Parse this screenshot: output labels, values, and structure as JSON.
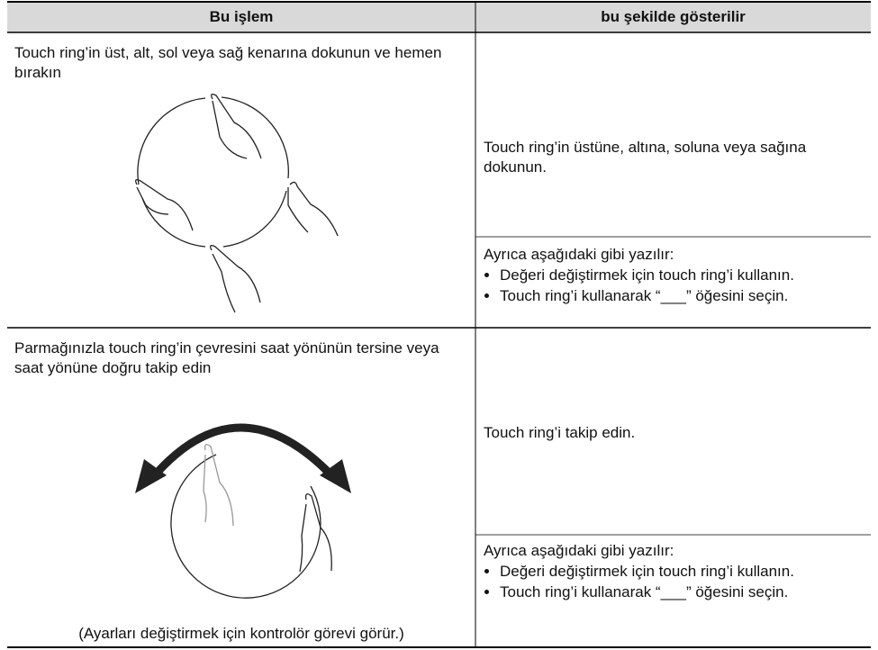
{
  "table": {
    "headers": [
      "Bu işlem",
      "bu şekilde gösterilir"
    ],
    "rows": [
      {
        "action": "Touch ring’in üst, alt, sol veya sağ kenarına dokunun ve hemen bırakın",
        "description": "Touch ring’in üstüne, altına, soluna veya sağına dokunun.",
        "note": {
          "intro": "Ayrıca aşağıdaki gibi yazılır:",
          "items": [
            "Değeri değiştirmek için touch ring’i kullanın.",
            "Touch ring’i kullanarak “___” öğesini seçin."
          ]
        }
      },
      {
        "action": "Parmağınızla touch ring’in çevresini saat yönünün tersine veya saat yönüne doğru takip edin",
        "description": "Touch ring’i takip edin.",
        "caption": "(Ayarları değiştirmek için kontrolör görevi görür.)",
        "note": {
          "intro": "Ayrıca aşağıdaki gibi yazılır:",
          "items": [
            "Değeri değiştirmek için touch ring’i kullanın.",
            "Touch ring’i kullanarak “___” öğesini seçin."
          ]
        }
      }
    ]
  }
}
